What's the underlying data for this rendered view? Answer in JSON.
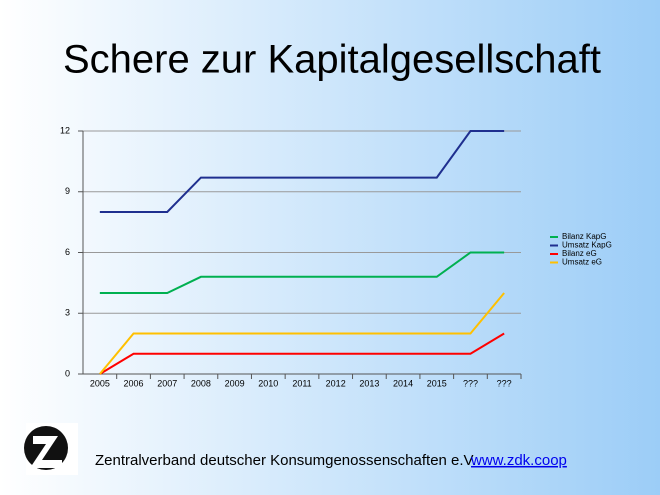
{
  "chart_data": {
    "type": "line",
    "title": "Schere zur Kapitalgesellschaft",
    "categories": [
      "2005",
      "2006",
      "2007",
      "2008",
      "2009",
      "2010",
      "2011",
      "2012",
      "2013",
      "2014",
      "2015",
      "???",
      "???"
    ],
    "series": [
      {
        "name": "Bilanz KapG",
        "color": "#00b050",
        "values": [
          4,
          4,
          4,
          4.8,
          4.8,
          4.8,
          4.8,
          4.8,
          4.8,
          4.8,
          4.8,
          6,
          6
        ]
      },
      {
        "name": "Umsatz KapG",
        "color": "#1f2f8f",
        "values": [
          8,
          8,
          8,
          9.7,
          9.7,
          9.7,
          9.7,
          9.7,
          9.7,
          9.7,
          9.7,
          12,
          12
        ]
      },
      {
        "name": "Bilanz eG",
        "color": "#ff0000",
        "values": [
          0,
          1,
          1,
          1,
          1,
          1,
          1,
          1,
          1,
          1,
          1,
          1,
          2
        ]
      },
      {
        "name": "Umsatz eG",
        "color": "#ffc000",
        "values": [
          0,
          2,
          2,
          2,
          2,
          2,
          2,
          2,
          2,
          2,
          2,
          2,
          4
        ]
      }
    ],
    "ylim": [
      0,
      12
    ],
    "yticks": [
      0,
      3,
      6,
      9,
      12
    ],
    "grid": true,
    "legend": "right"
  },
  "footer": {
    "text": "Zentralverband deutscher Konsumgenossenschaften e.V.",
    "link": "www.zdk.coop"
  }
}
